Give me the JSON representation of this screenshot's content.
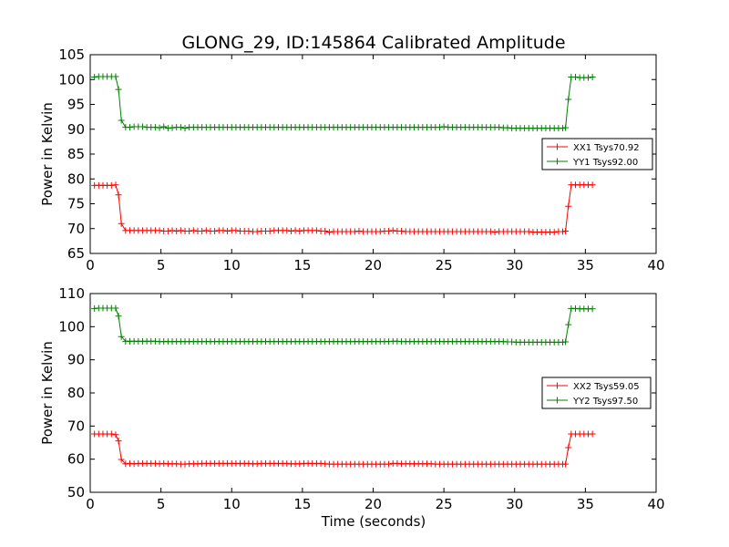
{
  "figure": {
    "title": "GLONG_29, ID:145864 Calibrated Amplitude",
    "xlabel": "Time (seconds)"
  },
  "chart_data": [
    {
      "type": "line",
      "title": "GLONG_29, ID:145864 Calibrated Amplitude",
      "xlabel": "",
      "ylabel": "Power in Kelvin",
      "xlim": [
        0,
        40
      ],
      "ylim": [
        65,
        105
      ],
      "xticks": [
        0,
        5,
        10,
        15,
        20,
        25,
        30,
        35,
        40
      ],
      "yticks": [
        65,
        70,
        75,
        80,
        85,
        90,
        95,
        100,
        105
      ],
      "legend_position": "center-right",
      "marker": "+",
      "x": [
        0.3,
        0.6,
        0.9,
        1.2,
        1.5,
        1.8,
        2.0,
        2.2,
        2.5,
        2.8,
        3.1,
        3.4,
        3.7,
        4.0,
        4.3,
        4.6,
        4.9,
        5.2,
        5.5,
        5.8,
        6.1,
        6.4,
        6.7,
        7.0,
        7.3,
        7.6,
        7.9,
        8.2,
        8.5,
        8.8,
        9.1,
        9.4,
        9.7,
        10.0,
        10.3,
        10.6,
        10.9,
        11.2,
        11.5,
        11.8,
        12.1,
        12.4,
        12.7,
        13.0,
        13.3,
        13.6,
        13.9,
        14.2,
        14.5,
        14.8,
        15.1,
        15.4,
        15.7,
        16.0,
        16.3,
        16.6,
        16.9,
        17.2,
        17.5,
        17.8,
        18.1,
        18.4,
        18.7,
        19.0,
        19.3,
        19.6,
        19.9,
        20.2,
        20.5,
        20.8,
        21.1,
        21.4,
        21.7,
        22.0,
        22.3,
        22.6,
        22.9,
        23.2,
        23.5,
        23.8,
        24.1,
        24.4,
        24.7,
        25.0,
        25.3,
        25.6,
        25.9,
        26.2,
        26.5,
        26.8,
        27.1,
        27.4,
        27.7,
        28.0,
        28.3,
        28.6,
        28.9,
        29.2,
        29.5,
        29.8,
        30.1,
        30.4,
        30.7,
        31.0,
        31.3,
        31.6,
        31.9,
        32.2,
        32.5,
        32.8,
        33.1,
        33.4,
        33.6,
        33.8,
        34.0,
        34.3,
        34.6,
        34.9,
        35.2,
        35.5
      ],
      "series": [
        {
          "name": "XX1 Tsys70.92",
          "color": "#ff0000",
          "values": [
            78.7,
            78.7,
            78.7,
            78.7,
            78.7,
            78.8,
            76.8,
            71.0,
            69.6,
            69.6,
            69.6,
            69.6,
            69.6,
            69.6,
            69.6,
            69.6,
            69.6,
            69.5,
            69.5,
            69.6,
            69.5,
            69.6,
            69.5,
            69.5,
            69.6,
            69.5,
            69.5,
            69.6,
            69.5,
            69.5,
            69.6,
            69.6,
            69.5,
            69.6,
            69.6,
            69.5,
            69.5,
            69.5,
            69.4,
            69.4,
            69.5,
            69.5,
            69.5,
            69.6,
            69.6,
            69.6,
            69.6,
            69.5,
            69.6,
            69.5,
            69.6,
            69.6,
            69.6,
            69.6,
            69.5,
            69.5,
            69.3,
            69.4,
            69.4,
            69.4,
            69.4,
            69.4,
            69.4,
            69.5,
            69.4,
            69.4,
            69.4,
            69.4,
            69.4,
            69.5,
            69.5,
            69.6,
            69.5,
            69.5,
            69.4,
            69.4,
            69.4,
            69.4,
            69.4,
            69.4,
            69.4,
            69.4,
            69.4,
            69.4,
            69.4,
            69.4,
            69.4,
            69.4,
            69.4,
            69.4,
            69.4,
            69.4,
            69.4,
            69.4,
            69.4,
            69.3,
            69.4,
            69.4,
            69.4,
            69.4,
            69.4,
            69.4,
            69.4,
            69.4,
            69.3,
            69.3,
            69.3,
            69.3,
            69.3,
            69.3,
            69.4,
            69.4,
            69.5,
            74.5,
            78.8,
            78.8,
            78.8,
            78.8,
            78.8,
            78.8
          ]
        },
        {
          "name": "YY1 Tsys92.00",
          "color": "#008000",
          "values": [
            100.5,
            100.6,
            100.6,
            100.6,
            100.6,
            100.6,
            98.0,
            91.8,
            90.4,
            90.4,
            90.5,
            90.5,
            90.5,
            90.4,
            90.4,
            90.4,
            90.3,
            90.5,
            90.2,
            90.3,
            90.4,
            90.4,
            90.2,
            90.4,
            90.4,
            90.4,
            90.4,
            90.4,
            90.4,
            90.4,
            90.4,
            90.4,
            90.4,
            90.4,
            90.4,
            90.4,
            90.4,
            90.4,
            90.4,
            90.4,
            90.4,
            90.4,
            90.4,
            90.4,
            90.4,
            90.4,
            90.4,
            90.4,
            90.4,
            90.4,
            90.4,
            90.4,
            90.4,
            90.4,
            90.4,
            90.4,
            90.4,
            90.4,
            90.4,
            90.4,
            90.4,
            90.4,
            90.4,
            90.4,
            90.4,
            90.4,
            90.4,
            90.4,
            90.4,
            90.4,
            90.4,
            90.4,
            90.4,
            90.4,
            90.4,
            90.4,
            90.4,
            90.4,
            90.4,
            90.4,
            90.4,
            90.4,
            90.4,
            90.5,
            90.4,
            90.4,
            90.4,
            90.4,
            90.4,
            90.4,
            90.4,
            90.4,
            90.4,
            90.4,
            90.4,
            90.4,
            90.4,
            90.3,
            90.3,
            90.2,
            90.2,
            90.2,
            90.2,
            90.2,
            90.2,
            90.2,
            90.2,
            90.2,
            90.2,
            90.2,
            90.2,
            90.2,
            90.3,
            96.0,
            100.5,
            100.5,
            100.4,
            100.4,
            100.4,
            100.5
          ]
        }
      ]
    },
    {
      "type": "line",
      "title": "",
      "xlabel": "Time (seconds)",
      "ylabel": "Power in Kelvin",
      "xlim": [
        0,
        40
      ],
      "ylim": [
        50,
        110
      ],
      "xticks": [
        0,
        5,
        10,
        15,
        20,
        25,
        30,
        35,
        40
      ],
      "yticks": [
        50,
        60,
        70,
        80,
        90,
        100,
        110
      ],
      "legend_position": "center-right",
      "marker": "+",
      "x": [
        0.3,
        0.6,
        0.9,
        1.2,
        1.5,
        1.8,
        2.0,
        2.2,
        2.5,
        2.8,
        3.1,
        3.4,
        3.7,
        4.0,
        4.3,
        4.6,
        4.9,
        5.2,
        5.5,
        5.8,
        6.1,
        6.4,
        6.7,
        7.0,
        7.3,
        7.6,
        7.9,
        8.2,
        8.5,
        8.8,
        9.1,
        9.4,
        9.7,
        10.0,
        10.3,
        10.6,
        10.9,
        11.2,
        11.5,
        11.8,
        12.1,
        12.4,
        12.7,
        13.0,
        13.3,
        13.6,
        13.9,
        14.2,
        14.5,
        14.8,
        15.1,
        15.4,
        15.7,
        16.0,
        16.3,
        16.6,
        16.9,
        17.2,
        17.5,
        17.8,
        18.1,
        18.4,
        18.7,
        19.0,
        19.3,
        19.6,
        19.9,
        20.2,
        20.5,
        20.8,
        21.1,
        21.4,
        21.7,
        22.0,
        22.3,
        22.6,
        22.9,
        23.2,
        23.5,
        23.8,
        24.1,
        24.4,
        24.7,
        25.0,
        25.3,
        25.6,
        25.9,
        26.2,
        26.5,
        26.8,
        27.1,
        27.4,
        27.7,
        28.0,
        28.3,
        28.6,
        28.9,
        29.2,
        29.5,
        29.8,
        30.1,
        30.4,
        30.7,
        31.0,
        31.3,
        31.6,
        31.9,
        32.2,
        32.5,
        32.8,
        33.1,
        33.4,
        33.6,
        33.8,
        34.0,
        34.3,
        34.6,
        34.9,
        35.2,
        35.5
      ],
      "series": [
        {
          "name": "XX2 Tsys59.05",
          "color": "#ff0000",
          "values": [
            67.6,
            67.6,
            67.6,
            67.6,
            67.6,
            67.4,
            65.5,
            59.9,
            58.6,
            58.7,
            58.6,
            58.7,
            58.7,
            58.7,
            58.7,
            58.7,
            58.6,
            58.7,
            58.6,
            58.6,
            58.6,
            58.5,
            58.5,
            58.6,
            58.6,
            58.6,
            58.7,
            58.7,
            58.7,
            58.7,
            58.7,
            58.7,
            58.7,
            58.7,
            58.7,
            58.7,
            58.7,
            58.7,
            58.6,
            58.6,
            58.7,
            58.7,
            58.7,
            58.7,
            58.7,
            58.7,
            58.7,
            58.6,
            58.6,
            58.6,
            58.7,
            58.7,
            58.7,
            58.7,
            58.7,
            58.6,
            58.5,
            58.5,
            58.5,
            58.5,
            58.5,
            58.5,
            58.5,
            58.5,
            58.5,
            58.5,
            58.5,
            58.5,
            58.5,
            58.5,
            58.5,
            58.7,
            58.7,
            58.6,
            58.6,
            58.6,
            58.6,
            58.6,
            58.6,
            58.6,
            58.6,
            58.5,
            58.5,
            58.5,
            58.5,
            58.5,
            58.5,
            58.5,
            58.5,
            58.5,
            58.5,
            58.5,
            58.5,
            58.5,
            58.5,
            58.5,
            58.5,
            58.5,
            58.5,
            58.5,
            58.5,
            58.5,
            58.5,
            58.5,
            58.5,
            58.5,
            58.5,
            58.5,
            58.5,
            58.5,
            58.5,
            58.5,
            58.5,
            63.5,
            67.6,
            67.6,
            67.6,
            67.6,
            67.6,
            67.6
          ]
        },
        {
          "name": "YY2 Tsys97.50",
          "color": "#008000",
          "values": [
            105.5,
            105.6,
            105.6,
            105.6,
            105.6,
            105.6,
            103.2,
            97.0,
            95.6,
            95.6,
            95.6,
            95.6,
            95.6,
            95.6,
            95.6,
            95.6,
            95.5,
            95.5,
            95.5,
            95.5,
            95.5,
            95.5,
            95.5,
            95.5,
            95.5,
            95.5,
            95.5,
            95.5,
            95.5,
            95.5,
            95.5,
            95.5,
            95.5,
            95.5,
            95.5,
            95.5,
            95.5,
            95.5,
            95.5,
            95.5,
            95.5,
            95.5,
            95.5,
            95.5,
            95.5,
            95.5,
            95.5,
            95.5,
            95.5,
            95.5,
            95.5,
            95.5,
            95.5,
            95.5,
            95.5,
            95.5,
            95.5,
            95.5,
            95.5,
            95.5,
            95.5,
            95.5,
            95.5,
            95.5,
            95.5,
            95.5,
            95.5,
            95.5,
            95.5,
            95.5,
            95.5,
            95.6,
            95.6,
            95.5,
            95.5,
            95.5,
            95.5,
            95.5,
            95.5,
            95.5,
            95.5,
            95.5,
            95.5,
            95.5,
            95.5,
            95.5,
            95.5,
            95.5,
            95.5,
            95.5,
            95.5,
            95.5,
            95.5,
            95.5,
            95.5,
            95.5,
            95.5,
            95.5,
            95.4,
            95.4,
            95.3,
            95.3,
            95.3,
            95.3,
            95.3,
            95.3,
            95.3,
            95.3,
            95.3,
            95.3,
            95.3,
            95.3,
            95.4,
            100.6,
            105.5,
            105.5,
            105.4,
            105.4,
            105.4,
            105.4
          ]
        }
      ]
    }
  ]
}
